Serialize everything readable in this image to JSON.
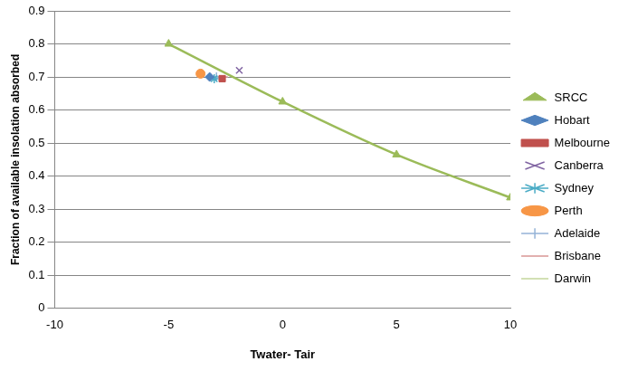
{
  "chart_data": {
    "type": "scatter",
    "x_label": "Twater- Tair",
    "y_label": "Fraction of available insolation absorbed",
    "xlim": [
      -10,
      10
    ],
    "xticks": [
      -10,
      -5,
      0,
      5,
      10
    ],
    "ylim": [
      0,
      0.9
    ],
    "yticks": [
      0,
      0.1,
      0.2,
      0.3,
      0.4,
      0.5,
      0.6,
      0.7,
      0.8,
      0.9
    ],
    "grid": "y",
    "legend": "right",
    "series": [
      {
        "name": "SRCC",
        "type": "line",
        "color": "#9BBB59",
        "marker": "triangle",
        "line_style": "solid",
        "x": [
          -5,
          0,
          5,
          10
        ],
        "values": [
          0.8,
          0.625,
          0.465,
          0.335
        ]
      },
      {
        "name": "Hobart",
        "type": "scatter",
        "color": "#4F81BD",
        "marker": "diamond",
        "x": [
          -3.2
        ],
        "values": [
          0.7
        ]
      },
      {
        "name": "Melbourne",
        "type": "scatter",
        "color": "#C0504D",
        "marker": "square",
        "x": [
          -2.65
        ],
        "values": [
          0.695
        ]
      },
      {
        "name": "Canberra",
        "type": "scatter",
        "color": "#8064A2",
        "marker": "x",
        "x": [
          -1.9
        ],
        "values": [
          0.72
        ]
      },
      {
        "name": "Sydney",
        "type": "scatter",
        "color": "#4BACC6",
        "marker": "star",
        "x": [
          -3.0
        ],
        "values": [
          0.695
        ]
      },
      {
        "name": "Perth",
        "type": "scatter",
        "color": "#F79646",
        "marker": "circle",
        "x": [
          -3.6
        ],
        "values": [
          0.71
        ]
      },
      {
        "name": "Adelaide",
        "type": "scatter",
        "color": "#95B3D7",
        "marker": "plus",
        "x": [
          -2.9
        ],
        "values": [
          0.7
        ]
      },
      {
        "name": "Brisbane",
        "type": "scatter",
        "color": "#D99694",
        "marker": "line",
        "x": [
          -2.6
        ],
        "values": [
          0.7
        ]
      },
      {
        "name": "Darwin",
        "type": "scatter",
        "color": "#C3D69B",
        "marker": "line",
        "x": [
          -2.8
        ],
        "values": [
          0.7
        ]
      }
    ]
  }
}
